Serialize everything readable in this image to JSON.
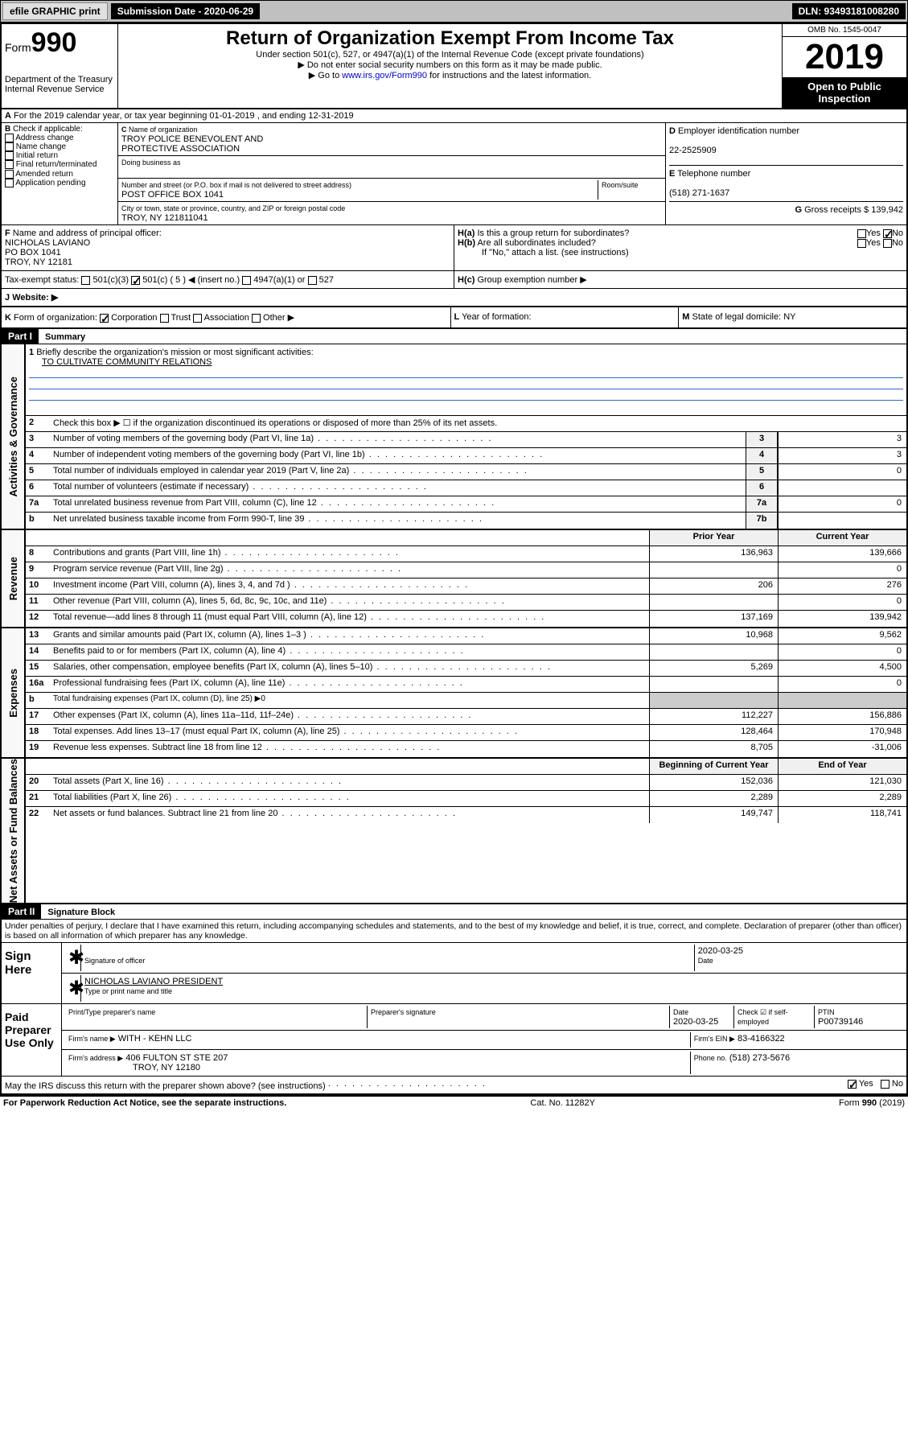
{
  "topbar": {
    "efile": "efile GRAPHIC print",
    "submission": "Submission Date - 2020-06-29",
    "dln": "DLN: 93493181008280"
  },
  "header": {
    "form_prefix": "Form",
    "form_num": "990",
    "title": "Return of Organization Exempt From Income Tax",
    "subtitle": "Under section 501(c), 527, or 4947(a)(1) of the Internal Revenue Code (except private foundations)",
    "note1": "Do not enter social security numbers on this form as it may be made public.",
    "note2_pre": "Go to ",
    "note2_link": "www.irs.gov/Form990",
    "note2_post": " for instructions and the latest information.",
    "dept": "Department of the Treasury",
    "irs": "Internal Revenue Service",
    "omb": "OMB No. 1545-0047",
    "year": "2019",
    "open": "Open to Public Inspection"
  },
  "rowA": "For the 2019 calendar year, or tax year beginning 01-01-2019    , and ending 12-31-2019",
  "boxB": {
    "label": "Check if applicable:",
    "opts": [
      "Address change",
      "Name change",
      "Initial return",
      "Final return/terminated",
      "Amended return",
      "Application pending"
    ]
  },
  "boxC": {
    "name_label": "Name of organization",
    "name1": "TROY POLICE BENEVOLENT AND",
    "name2": "PROTECTIVE ASSOCIATION",
    "dba_label": "Doing business as",
    "addr_label": "Number and street (or P.O. box if mail is not delivered to street address)",
    "room_label": "Room/suite",
    "addr": "POST OFFICE BOX 1041",
    "city_label": "City or town, state or province, country, and ZIP or foreign postal code",
    "city": "TROY, NY 121811041"
  },
  "boxD": {
    "label": "Employer identification number",
    "val": "22-2525909"
  },
  "boxE": {
    "label": "Telephone number",
    "val": "(518) 271-1637"
  },
  "boxG": {
    "label": "Gross receipts $",
    "val": "139,942"
  },
  "boxF": {
    "label": "Name and address of principal officer:",
    "name": "NICHOLAS LAVIANO",
    "addr1": "PO BOX 1041",
    "addr2": "TROY, NY 12181"
  },
  "boxH": {
    "a": "Is this a group return for subordinates?",
    "b": "Are all subordinates included?",
    "b_note": "If \"No,\" attach a list. (see instructions)",
    "c": "Group exemption number ▶"
  },
  "taxStatus": {
    "label": "Tax-exempt status:",
    "opt1": "501(c)(3)",
    "opt2": "501(c) ( 5 ) ◀ (insert no.)",
    "opt3": "4947(a)(1) or",
    "opt4": "527"
  },
  "website": {
    "label": "Website: ▶"
  },
  "rowK": {
    "label": "Form of organization:",
    "opts": [
      "Corporation",
      "Trust",
      "Association",
      "Other ▶"
    ]
  },
  "rowL": "Year of formation:",
  "rowM": "State of legal domicile: NY",
  "part1": {
    "hdr": "Part I",
    "title": "Summary",
    "l1": "Briefly describe the organization's mission or most significant activities:",
    "l1_val": "TO CULTIVATE COMMUNITY RELATIONS",
    "l2": "Check this box ▶ ☐  if the organization discontinued its operations or disposed of more than 25% of its net assets.",
    "lines_gov": [
      {
        "n": "3",
        "t": "Number of voting members of the governing body (Part VI, line 1a)",
        "r": "3",
        "v": "3"
      },
      {
        "n": "4",
        "t": "Number of independent voting members of the governing body (Part VI, line 1b)",
        "r": "4",
        "v": "3"
      },
      {
        "n": "5",
        "t": "Total number of individuals employed in calendar year 2019 (Part V, line 2a)",
        "r": "5",
        "v": "0"
      },
      {
        "n": "6",
        "t": "Total number of volunteers (estimate if necessary)",
        "r": "6",
        "v": ""
      },
      {
        "n": "7a",
        "t": "Total unrelated business revenue from Part VIII, column (C), line 12",
        "r": "7a",
        "v": "0"
      },
      {
        "n": "b",
        "t": "Net unrelated business taxable income from Form 990-T, line 39",
        "r": "7b",
        "v": ""
      }
    ],
    "col_prior": "Prior Year",
    "col_current": "Current Year",
    "lines_rev": [
      {
        "n": "8",
        "t": "Contributions and grants (Part VIII, line 1h)",
        "p": "136,963",
        "c": "139,666"
      },
      {
        "n": "9",
        "t": "Program service revenue (Part VIII, line 2g)",
        "p": "",
        "c": "0"
      },
      {
        "n": "10",
        "t": "Investment income (Part VIII, column (A), lines 3, 4, and 7d )",
        "p": "206",
        "c": "276"
      },
      {
        "n": "11",
        "t": "Other revenue (Part VIII, column (A), lines 5, 6d, 8c, 9c, 10c, and 11e)",
        "p": "",
        "c": "0"
      },
      {
        "n": "12",
        "t": "Total revenue—add lines 8 through 11 (must equal Part VIII, column (A), line 12)",
        "p": "137,169",
        "c": "139,942"
      }
    ],
    "lines_exp": [
      {
        "n": "13",
        "t": "Grants and similar amounts paid (Part IX, column (A), lines 1–3 )",
        "p": "10,968",
        "c": "9,562"
      },
      {
        "n": "14",
        "t": "Benefits paid to or for members (Part IX, column (A), line 4)",
        "p": "",
        "c": "0"
      },
      {
        "n": "15",
        "t": "Salaries, other compensation, employee benefits (Part IX, column (A), lines 5–10)",
        "p": "5,269",
        "c": "4,500"
      },
      {
        "n": "16a",
        "t": "Professional fundraising fees (Part IX, column (A), line 11e)",
        "p": "",
        "c": "0"
      },
      {
        "n": "b",
        "t": "Total fundraising expenses (Part IX, column (D), line 25) ▶0",
        "p": "—",
        "c": "—"
      },
      {
        "n": "17",
        "t": "Other expenses (Part IX, column (A), lines 11a–11d, 11f–24e)",
        "p": "112,227",
        "c": "156,886"
      },
      {
        "n": "18",
        "t": "Total expenses. Add lines 13–17 (must equal Part IX, column (A), line 25)",
        "p": "128,464",
        "c": "170,948"
      },
      {
        "n": "19",
        "t": "Revenue less expenses. Subtract line 18 from line 12",
        "p": "8,705",
        "c": "-31,006"
      }
    ],
    "col_begin": "Beginning of Current Year",
    "col_end": "End of Year",
    "lines_net": [
      {
        "n": "20",
        "t": "Total assets (Part X, line 16)",
        "p": "152,036",
        "c": "121,030"
      },
      {
        "n": "21",
        "t": "Total liabilities (Part X, line 26)",
        "p": "2,289",
        "c": "2,289"
      },
      {
        "n": "22",
        "t": "Net assets or fund balances. Subtract line 21 from line 20",
        "p": "149,747",
        "c": "118,741"
      }
    ],
    "vert_gov": "Activities & Governance",
    "vert_rev": "Revenue",
    "vert_exp": "Expenses",
    "vert_net": "Net Assets or Fund Balances"
  },
  "part2": {
    "hdr": "Part II",
    "title": "Signature Block",
    "declaration": "Under penalties of perjury, I declare that I have examined this return, including accompanying schedules and statements, and to the best of my knowledge and belief, it is true, correct, and complete. Declaration of preparer (other than officer) is based on all information of which preparer has any knowledge.",
    "sign_here": "Sign Here",
    "sig_officer": "Signature of officer",
    "sig_date": "2020-03-25",
    "date_label": "Date",
    "officer_name": "NICHOLAS LAVIANO  PRESIDENT",
    "type_name": "Type or print name and title",
    "paid": "Paid Preparer Use Only",
    "prep_name_label": "Print/Type preparer's name",
    "prep_sig_label": "Preparer's signature",
    "prep_date_label": "Date",
    "prep_date": "2020-03-25",
    "check_label": "Check ☑ if self-employed",
    "ptin_label": "PTIN",
    "ptin": "P00739146",
    "firm_name_label": "Firm's name    ▶",
    "firm_name": "WITH - KEHN LLC",
    "firm_ein_label": "Firm's EIN ▶",
    "firm_ein": "83-4166322",
    "firm_addr_label": "Firm's address ▶",
    "firm_addr1": "406 FULTON ST STE 207",
    "firm_addr2": "TROY, NY 12180",
    "phone_label": "Phone no.",
    "phone": "(518) 273-5676",
    "discuss": "May the IRS discuss this return with the preparer shown above? (see instructions)"
  },
  "footer": {
    "pra": "For Paperwork Reduction Act Notice, see the separate instructions.",
    "cat": "Cat. No. 11282Y",
    "form": "Form 990 (2019)"
  }
}
